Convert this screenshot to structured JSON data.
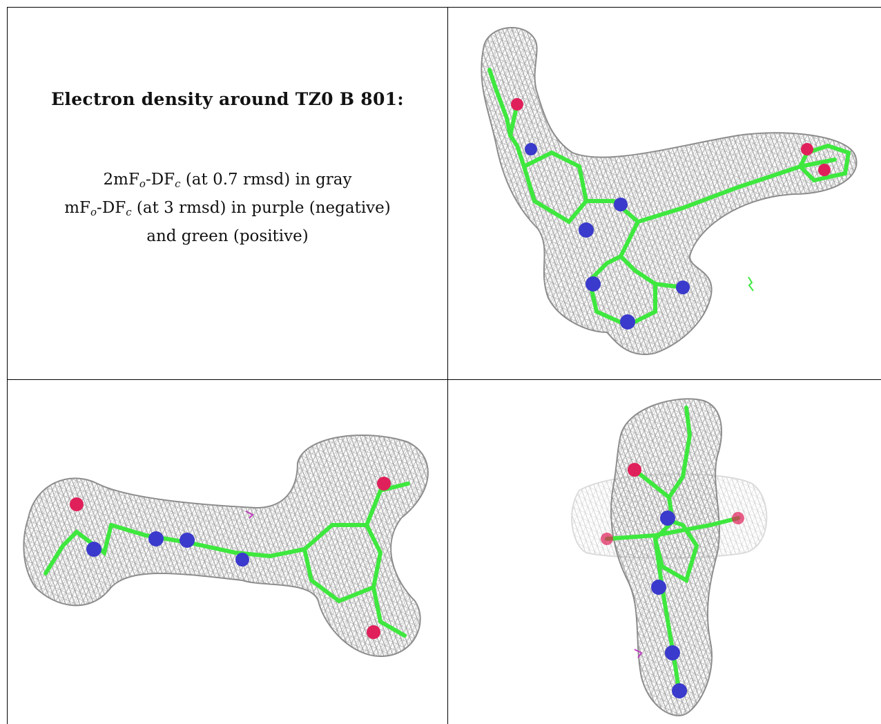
{
  "caption": {
    "title": "Electron density around TZ0 B 801:",
    "line1": {
      "a": "2mF",
      "a_sub": "o",
      "b": "-DF",
      "b_sub": "c",
      "rest": " (at 0.7 rmsd) in gray"
    },
    "line2": {
      "a": "mF",
      "a_sub": "o",
      "b": "-DF",
      "b_sub": "c",
      "rest": " (at 3 rmsd) in purple (negative)"
    },
    "line3": "and green (positive)"
  },
  "colors": {
    "mesh": "#9a9a9a",
    "carbon": "#3ee83e",
    "nitrogen": "#3a3acc",
    "oxygen": "#e0205a",
    "negative": "#c040c0",
    "border": "#000000"
  },
  "panels": [
    {
      "name": "view-1",
      "content": "ligand-density-view"
    },
    {
      "name": "view-2",
      "content": "ligand-density-view"
    },
    {
      "name": "view-3",
      "content": "ligand-density-view"
    }
  ]
}
